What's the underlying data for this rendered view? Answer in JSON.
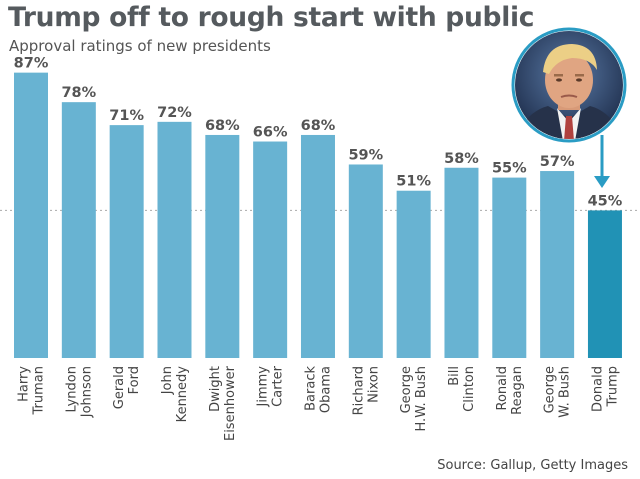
{
  "header": {
    "title": "Trump off to rough start with public",
    "subtitle": "Approval ratings of new presidents"
  },
  "footer": {
    "source": "Source: Gallup, Getty Images"
  },
  "colors": {
    "bar": "#68b3d2",
    "highlight_bar": "#2192b5",
    "arrow": "#2a9cc4",
    "reference_line": "#aaaaaa"
  },
  "photo": {
    "subject": "Donald Trump portrait",
    "icon": "portrait-photo"
  },
  "chart_data": {
    "type": "bar",
    "title": "Trump off to rough start with public",
    "subtitle": "Approval ratings of new presidents",
    "xlabel": "",
    "ylabel": "",
    "ylim": [
      0,
      100
    ],
    "unit": "%",
    "grid": false,
    "legend": "none",
    "categories": [
      [
        "Harry",
        "Truman"
      ],
      [
        "Lyndon",
        "Johnson"
      ],
      [
        "Gerald",
        "Ford"
      ],
      [
        "John",
        "Kennedy"
      ],
      [
        "Dwight",
        "Eisenhower"
      ],
      [
        "Jimmy",
        "Carter"
      ],
      [
        "Barack",
        "Obama"
      ],
      [
        "Richard",
        "Nixon"
      ],
      [
        "George",
        "H.W. Bush"
      ],
      [
        "Bill",
        "Clinton"
      ],
      [
        "Ronald",
        "Reagan"
      ],
      [
        "George",
        "W. Bush"
      ],
      [
        "Donald",
        "Trump"
      ]
    ],
    "values": [
      87,
      78,
      71,
      72,
      68,
      66,
      68,
      59,
      51,
      58,
      55,
      57,
      45
    ],
    "value_labels": [
      "87%",
      "78%",
      "71%",
      "72%",
      "68%",
      "66%",
      "68%",
      "59%",
      "51%",
      "58%",
      "55%",
      "57%",
      "45%"
    ],
    "highlight_index": 12,
    "reference_line_value": 45
  }
}
